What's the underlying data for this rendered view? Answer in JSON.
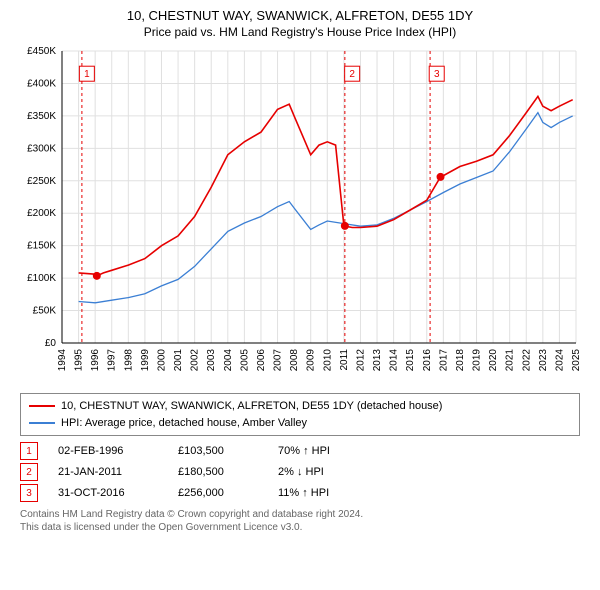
{
  "title": "10, CHESTNUT WAY, SWANWICK, ALFRETON, DE55 1DY",
  "subtitle": "Price paid vs. HM Land Registry's House Price Index (HPI)",
  "chart": {
    "type": "line",
    "background_color": "#ffffff",
    "grid_color": "#e0e0e0",
    "grid_on": true,
    "x_axis": {
      "min_year": 1994,
      "max_year": 2025,
      "ticks": [
        "1994",
        "1995",
        "1996",
        "1997",
        "1998",
        "1999",
        "2000",
        "2001",
        "2002",
        "2003",
        "2004",
        "2005",
        "2006",
        "2007",
        "2008",
        "2009",
        "2010",
        "2011",
        "2012",
        "2013",
        "2014",
        "2015",
        "2016",
        "2017",
        "2018",
        "2019",
        "2020",
        "2021",
        "2022",
        "2023",
        "2024",
        "2025"
      ],
      "tick_fontsize": 10,
      "rotate": -90
    },
    "y_axis": {
      "min": 0,
      "max": 450000,
      "tick_step": 50000,
      "ticks": [
        "£0",
        "£50K",
        "£100K",
        "£150K",
        "£200K",
        "£250K",
        "£300K",
        "£350K",
        "£400K",
        "£450K"
      ],
      "tick_fontsize": 10
    },
    "series": [
      {
        "name": "10, CHESTNUT WAY, SWANWICK, ALFRETON, DE55 1DY (detached house)",
        "color": "#e60000",
        "line_width": 1.6,
        "data": [
          {
            "year": 1995,
            "value": 108000
          },
          {
            "year": 1996,
            "value": 106000
          },
          {
            "year": 1996.1,
            "value": 103500
          },
          {
            "year": 1996.5,
            "value": 108000
          },
          {
            "year": 1997,
            "value": 112000
          },
          {
            "year": 1998,
            "value": 120000
          },
          {
            "year": 1999,
            "value": 130000
          },
          {
            "year": 2000,
            "value": 150000
          },
          {
            "year": 2001,
            "value": 165000
          },
          {
            "year": 2002,
            "value": 195000
          },
          {
            "year": 2003,
            "value": 240000
          },
          {
            "year": 2004,
            "value": 290000
          },
          {
            "year": 2005,
            "value": 310000
          },
          {
            "year": 2006,
            "value": 325000
          },
          {
            "year": 2007,
            "value": 360000
          },
          {
            "year": 2007.7,
            "value": 368000
          },
          {
            "year": 2008,
            "value": 350000
          },
          {
            "year": 2009,
            "value": 290000
          },
          {
            "year": 2009.5,
            "value": 305000
          },
          {
            "year": 2010,
            "value": 310000
          },
          {
            "year": 2010.5,
            "value": 305000
          },
          {
            "year": 2011,
            "value": 180500
          },
          {
            "year": 2011.5,
            "value": 178000
          },
          {
            "year": 2012,
            "value": 178000
          },
          {
            "year": 2013,
            "value": 180000
          },
          {
            "year": 2014,
            "value": 190000
          },
          {
            "year": 2015,
            "value": 205000
          },
          {
            "year": 2016,
            "value": 220000
          },
          {
            "year": 2016.83,
            "value": 256000
          },
          {
            "year": 2017,
            "value": 258000
          },
          {
            "year": 2018,
            "value": 272000
          },
          {
            "year": 2019,
            "value": 280000
          },
          {
            "year": 2020,
            "value": 290000
          },
          {
            "year": 2021,
            "value": 320000
          },
          {
            "year": 2022,
            "value": 355000
          },
          {
            "year": 2022.7,
            "value": 380000
          },
          {
            "year": 2023,
            "value": 365000
          },
          {
            "year": 2023.5,
            "value": 358000
          },
          {
            "year": 2024,
            "value": 365000
          },
          {
            "year": 2024.8,
            "value": 375000
          }
        ]
      },
      {
        "name": "HPI: Average price, detached house, Amber Valley",
        "color": "#3b7fd4",
        "line_width": 1.3,
        "data": [
          {
            "year": 1995,
            "value": 64000
          },
          {
            "year": 1996,
            "value": 62000
          },
          {
            "year": 1997,
            "value": 66000
          },
          {
            "year": 1998,
            "value": 70000
          },
          {
            "year": 1999,
            "value": 76000
          },
          {
            "year": 2000,
            "value": 88000
          },
          {
            "year": 2001,
            "value": 98000
          },
          {
            "year": 2002,
            "value": 118000
          },
          {
            "year": 2003,
            "value": 145000
          },
          {
            "year": 2004,
            "value": 172000
          },
          {
            "year": 2005,
            "value": 185000
          },
          {
            "year": 2006,
            "value": 195000
          },
          {
            "year": 2007,
            "value": 210000
          },
          {
            "year": 2007.7,
            "value": 218000
          },
          {
            "year": 2008,
            "value": 208000
          },
          {
            "year": 2009,
            "value": 175000
          },
          {
            "year": 2009.5,
            "value": 182000
          },
          {
            "year": 2010,
            "value": 188000
          },
          {
            "year": 2011,
            "value": 184000
          },
          {
            "year": 2012,
            "value": 180000
          },
          {
            "year": 2013,
            "value": 182000
          },
          {
            "year": 2014,
            "value": 192000
          },
          {
            "year": 2015,
            "value": 205000
          },
          {
            "year": 2016,
            "value": 218000
          },
          {
            "year": 2017,
            "value": 232000
          },
          {
            "year": 2018,
            "value": 245000
          },
          {
            "year": 2019,
            "value": 255000
          },
          {
            "year": 2020,
            "value": 265000
          },
          {
            "year": 2021,
            "value": 295000
          },
          {
            "year": 2022,
            "value": 330000
          },
          {
            "year": 2022.7,
            "value": 355000
          },
          {
            "year": 2023,
            "value": 340000
          },
          {
            "year": 2023.5,
            "value": 332000
          },
          {
            "year": 2024,
            "value": 340000
          },
          {
            "year": 2024.8,
            "value": 350000
          }
        ]
      }
    ],
    "markers": [
      {
        "num": "1",
        "year": 1996.1,
        "value": 103500,
        "date": "02-FEB-1996",
        "price": "£103,500",
        "pct": "70% ↑ HPI",
        "vline_x_year": 1995.2,
        "box_x_year": 1995.5,
        "box_y_value": 415000,
        "color": "#e60000"
      },
      {
        "num": "2",
        "year": 2011.06,
        "value": 180500,
        "date": "21-JAN-2011",
        "price": "£180,500",
        "pct": "2% ↓ HPI",
        "vline_x_year": 2011.06,
        "box_x_year": 2011.5,
        "box_y_value": 415000,
        "color": "#e60000"
      },
      {
        "num": "3",
        "year": 2016.83,
        "value": 256000,
        "date": "31-OCT-2016",
        "price": "£256,000",
        "pct": "11% ↑ HPI",
        "vline_x_year": 2016.2,
        "box_x_year": 2016.6,
        "box_y_value": 415000,
        "color": "#e60000"
      }
    ],
    "marker_dot_radius": 4,
    "marker_box_size": 15,
    "marker_box_fontsize": 10
  },
  "legend": {
    "items": [
      {
        "label": "10, CHESTNUT WAY, SWANWICK, ALFRETON, DE55 1DY (detached house)",
        "color": "#e60000"
      },
      {
        "label": "HPI: Average price, detached house, Amber Valley",
        "color": "#3b7fd4"
      }
    ]
  },
  "footer": {
    "line1": "Contains HM Land Registry data © Crown copyright and database right 2024.",
    "line2": "This data is licensed under the Open Government Licence v3.0."
  }
}
